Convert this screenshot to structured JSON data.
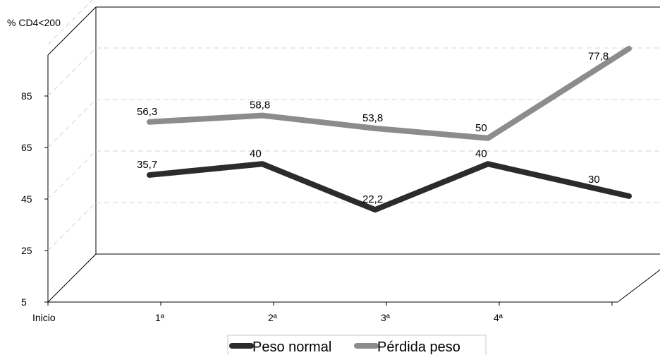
{
  "chart_data": {
    "type": "line",
    "title": "",
    "xlabel": "",
    "ylabel": "% CD4<200",
    "categories": [
      "Inicio",
      "1ª",
      "2ª",
      "3ª",
      "4ª"
    ],
    "yticks": [
      "5",
      "25",
      "45",
      "65",
      "85"
    ],
    "ylim": [
      5,
      105
    ],
    "grid": true,
    "legend_position": "bottom",
    "series": [
      {
        "name": "Peso normal",
        "values": [
          35.7,
          40,
          22.2,
          40,
          30
        ],
        "labels": [
          "35,7",
          "40",
          "22,2",
          "40",
          "30"
        ],
        "color": "#2b2b2b"
      },
      {
        "name": "Pérdida peso",
        "values": [
          56.3,
          58.8,
          53.8,
          50,
          77.8
        ],
        "labels": [
          "56,3",
          "58,8",
          "53,8",
          "50",
          "77,8"
        ],
        "color": "#8c8c8c"
      }
    ]
  }
}
